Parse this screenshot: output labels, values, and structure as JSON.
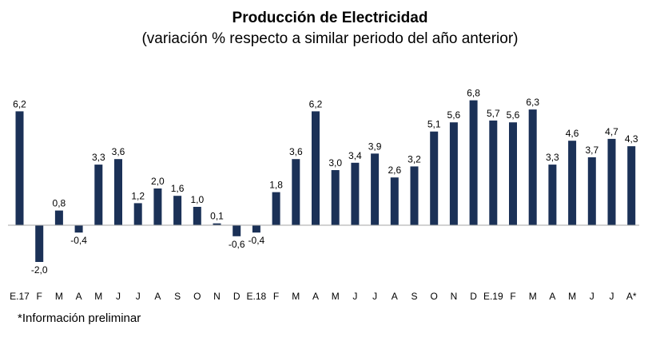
{
  "chart_data": {
    "type": "bar",
    "title": "Producción de Electricidad",
    "subtitle": "(variación % respecto a similar periodo del año anterior)",
    "footnote": "*Información preliminar",
    "categories": [
      "E.17",
      "F",
      "M",
      "A",
      "M",
      "J",
      "J",
      "A",
      "S",
      "O",
      "N",
      "D",
      "E.18",
      "F",
      "M",
      "A",
      "M",
      "J",
      "J",
      "A",
      "S",
      "O",
      "N",
      "D",
      "E.19",
      "F",
      "M",
      "A",
      "M",
      "J",
      "J",
      "A*"
    ],
    "values": [
      6.2,
      -2.0,
      0.8,
      -0.4,
      3.3,
      3.6,
      1.2,
      2.0,
      1.6,
      1.0,
      0.1,
      -0.6,
      -0.4,
      1.8,
      3.6,
      6.2,
      3.0,
      3.4,
      3.9,
      2.6,
      3.2,
      5.1,
      5.6,
      6.8,
      5.7,
      5.6,
      6.3,
      3.3,
      4.6,
      3.7,
      4.7,
      4.3
    ],
    "value_labels": [
      "6,2",
      "-2,0",
      "0,8",
      "-0,4",
      "3,3",
      "3,6",
      "1,2",
      "2,0",
      "1,6",
      "1,0",
      "0,1",
      "-0,6",
      "-0,4",
      "1,8",
      "3,6",
      "6,2",
      "3,0",
      "3,4",
      "3,9",
      "2,6",
      "3,2",
      "5,1",
      "5,6",
      "6,8",
      "5,7",
      "5,6",
      "6,3",
      "3,3",
      "4,6",
      "3,7",
      "4,7",
      "4,3"
    ],
    "bar_color": "#1b3157",
    "axis_color": "#a6a6a6",
    "xlabel": "",
    "ylabel": "",
    "grid": false,
    "legend": "none"
  }
}
